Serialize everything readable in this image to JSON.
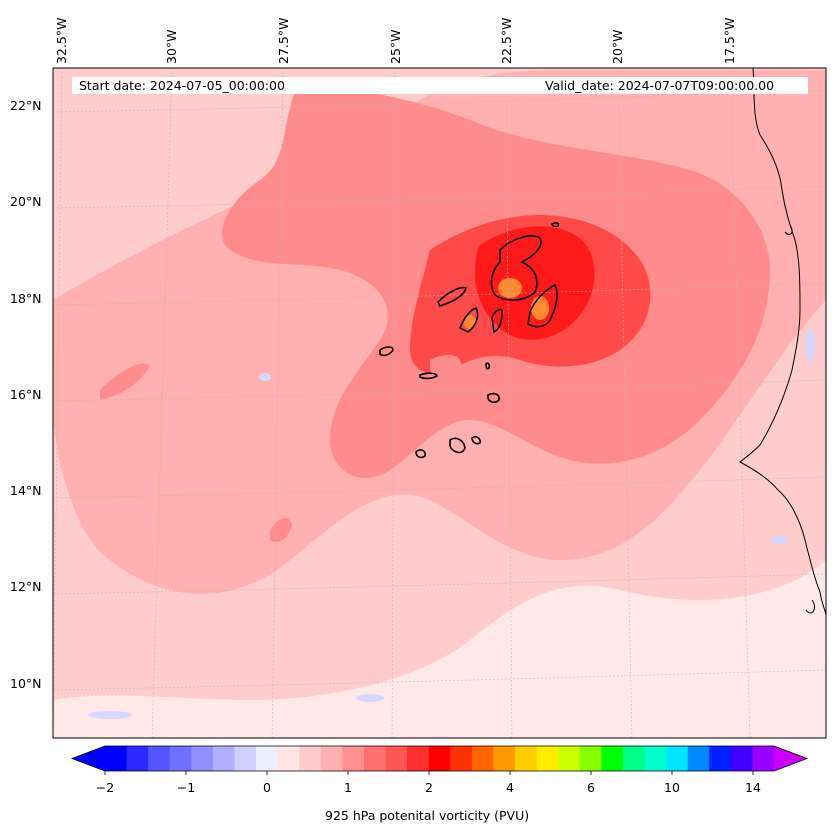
{
  "header": {
    "start_date": "Start date: 2024-07-05_00:00:00",
    "valid_date": "Valid_date: 2024-07-07T09:00:00.00"
  },
  "axes": {
    "longitude_labels": [
      "32.5°W",
      "30°W",
      "27.5°W",
      "25°W",
      "22.5°W",
      "20°W",
      "17.5°W"
    ],
    "latitude_labels": [
      "22°N",
      "20°N",
      "18°N",
      "16°N",
      "14°N",
      "12°N",
      "10°N"
    ],
    "lon_range": [
      -33,
      -16
    ],
    "lat_range": [
      9,
      22.8
    ],
    "gridlines": true
  },
  "colorbar": {
    "label": "925 hPa potenital vorticity (PVU)",
    "ticks": [
      "−2",
      "−1",
      "0",
      "1",
      "2",
      "4",
      "6",
      "10",
      "14"
    ],
    "colors": [
      "#0000ff",
      "#2a2aff",
      "#5555ff",
      "#7070ff",
      "#9090ff",
      "#b0b0ff",
      "#d0d0ff",
      "#eeeeff",
      "#ffe6e6",
      "#ffcccc",
      "#ffb0b0",
      "#ff9090",
      "#ff7070",
      "#ff5555",
      "#ff3030",
      "#ff0000",
      "#ff3300",
      "#ff6600",
      "#ff9900",
      "#ffcc00",
      "#ffee00",
      "#ccff00",
      "#88ff00",
      "#00ff00",
      "#00ff88",
      "#00ffcc",
      "#00e5ff",
      "#0088ff",
      "#0022ff",
      "#4400ff",
      "#9900ff"
    ],
    "extend_colors": {
      "low": "#0000ff",
      "high": "#cc00ff"
    }
  },
  "map_colors": {
    "background": "#ffe8e8",
    "light_pink": "#ffcccc",
    "pink": "#ffb0b0",
    "salmon": "#ff8c8c",
    "red": "#ff4a4a",
    "deep_red": "#ff1a1a",
    "orange": "#ff8a30",
    "contour": "#000000",
    "coast": "#000000"
  }
}
